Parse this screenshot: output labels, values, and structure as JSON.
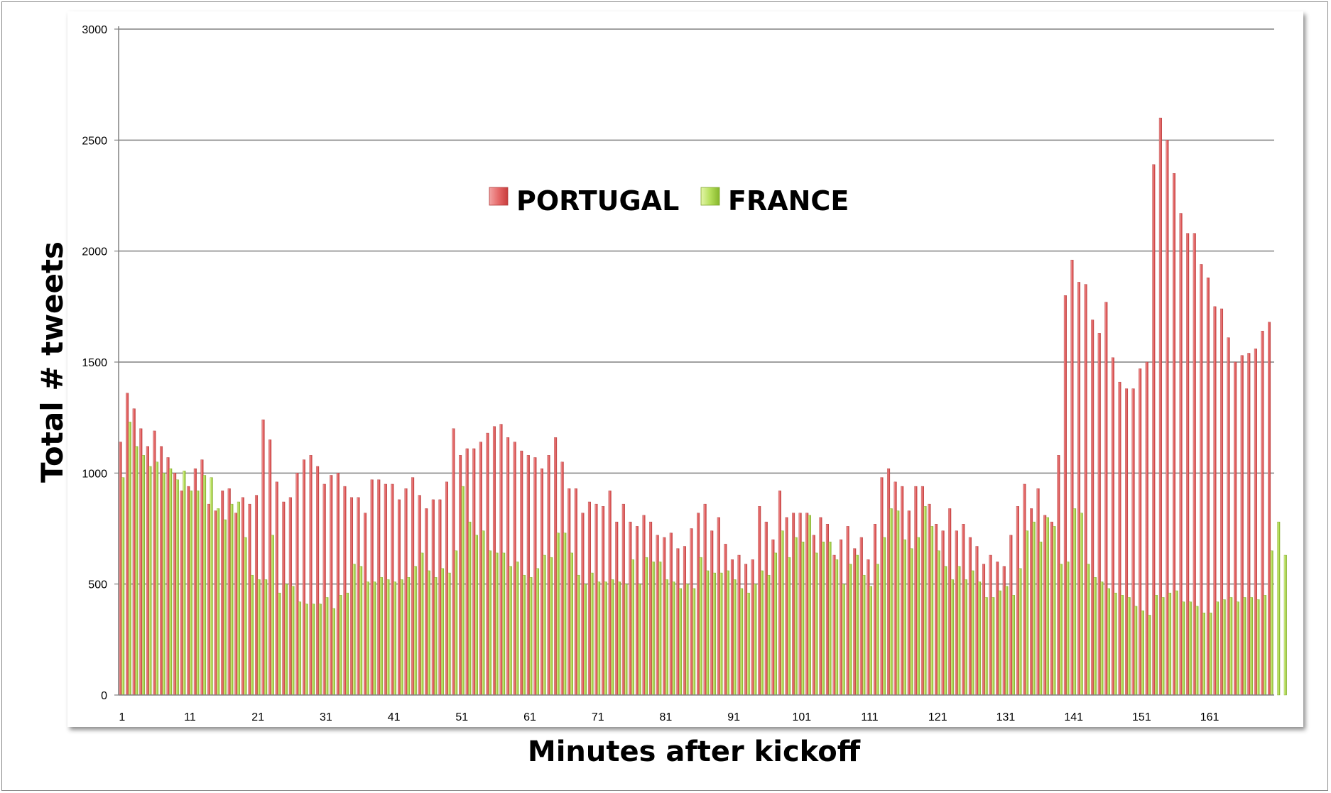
{
  "chart_data": {
    "type": "bar",
    "title": "",
    "xlabel": "Minutes  after kickoff",
    "ylabel": "Total  #  tweets",
    "ylim": [
      0,
      3000
    ],
    "yticks": [
      0,
      500,
      1000,
      1500,
      2000,
      2500,
      3000
    ],
    "xtick_labels": [
      "1",
      "11",
      "21",
      "31",
      "41",
      "51",
      "61",
      "71",
      "81",
      "91",
      "101",
      "111",
      "121",
      "131",
      "141",
      "151",
      "161"
    ],
    "grid": true,
    "legend_position": "top-center",
    "x_start": 1,
    "series": [
      {
        "name": "PORTUGAL",
        "color": "#e05a5a",
        "values": [
          1140,
          1360,
          1290,
          1200,
          1120,
          1190,
          1120,
          1070,
          1000,
          920,
          940,
          1020,
          1060,
          860,
          830,
          920,
          930,
          820,
          890,
          860,
          900,
          1240,
          1150,
          960,
          870,
          890,
          1000,
          1060,
          1080,
          1030,
          950,
          990,
          1000,
          940,
          890,
          890,
          820,
          970,
          970,
          950,
          950,
          880,
          930,
          980,
          900,
          840,
          880,
          880,
          960,
          1200,
          1080,
          1110,
          1110,
          1140,
          1180,
          1210,
          1220,
          1160,
          1140,
          1100,
          1080,
          1070,
          1020,
          1080,
          1160,
          1050,
          930,
          930,
          820,
          870,
          860,
          850,
          920,
          780,
          860,
          780,
          760,
          810,
          780,
          720,
          710,
          730,
          660,
          670,
          750,
          820,
          860,
          740,
          800,
          680,
          610,
          630,
          590,
          610,
          850,
          780,
          700,
          920,
          800,
          820,
          820,
          820,
          720,
          800,
          770,
          630,
          700,
          760,
          660,
          710,
          610,
          770,
          980,
          1020,
          960,
          940,
          830,
          940,
          940,
          860,
          770,
          740,
          840,
          740,
          770,
          710,
          670,
          590,
          630,
          600,
          580,
          720,
          850,
          950,
          840,
          930,
          810,
          780,
          1080,
          1800,
          1960,
          1860,
          1850,
          1690,
          1630,
          1770,
          1520,
          1410,
          1380,
          1380,
          1470,
          1500,
          2390,
          2600,
          2500,
          2350,
          2170,
          2080,
          2080,
          1940,
          1880,
          1750,
          1740,
          1610,
          1500,
          1530,
          1540,
          1560,
          1640,
          1680
        ]
      },
      {
        "name": "FRANCE",
        "color": "#a8d64a",
        "values": [
          980,
          1230,
          1120,
          1080,
          1030,
          1050,
          1000,
          1020,
          970,
          1010,
          920,
          920,
          990,
          980,
          840,
          790,
          860,
          870,
          710,
          540,
          520,
          520,
          720,
          460,
          500,
          490,
          420,
          410,
          410,
          410,
          440,
          390,
          450,
          460,
          590,
          580,
          510,
          510,
          530,
          520,
          510,
          520,
          530,
          580,
          640,
          560,
          530,
          570,
          550,
          650,
          940,
          780,
          720,
          740,
          650,
          640,
          640,
          580,
          600,
          540,
          530,
          570,
          630,
          620,
          730,
          730,
          640,
          540,
          500,
          550,
          510,
          510,
          520,
          510,
          500,
          610,
          500,
          620,
          600,
          600,
          520,
          510,
          480,
          500,
          480,
          620,
          560,
          550,
          550,
          560,
          520,
          480,
          460,
          500,
          560,
          540,
          640,
          740,
          620,
          710,
          690,
          810,
          640,
          690,
          690,
          610,
          500,
          590,
          630,
          540,
          490,
          590,
          710,
          840,
          830,
          700,
          660,
          710,
          850,
          760,
          650,
          580,
          520,
          580,
          520,
          560,
          510,
          440,
          440,
          470,
          490,
          450,
          570,
          740,
          780,
          690,
          800,
          760,
          590,
          600,
          840,
          820,
          590,
          530,
          510,
          480,
          460,
          450,
          440,
          400,
          380,
          360,
          450,
          440,
          460,
          470,
          420,
          420,
          400,
          370,
          370,
          420,
          430,
          440,
          420,
          440,
          440,
          430,
          450,
          650,
          780,
          630
        ]
      }
    ]
  }
}
